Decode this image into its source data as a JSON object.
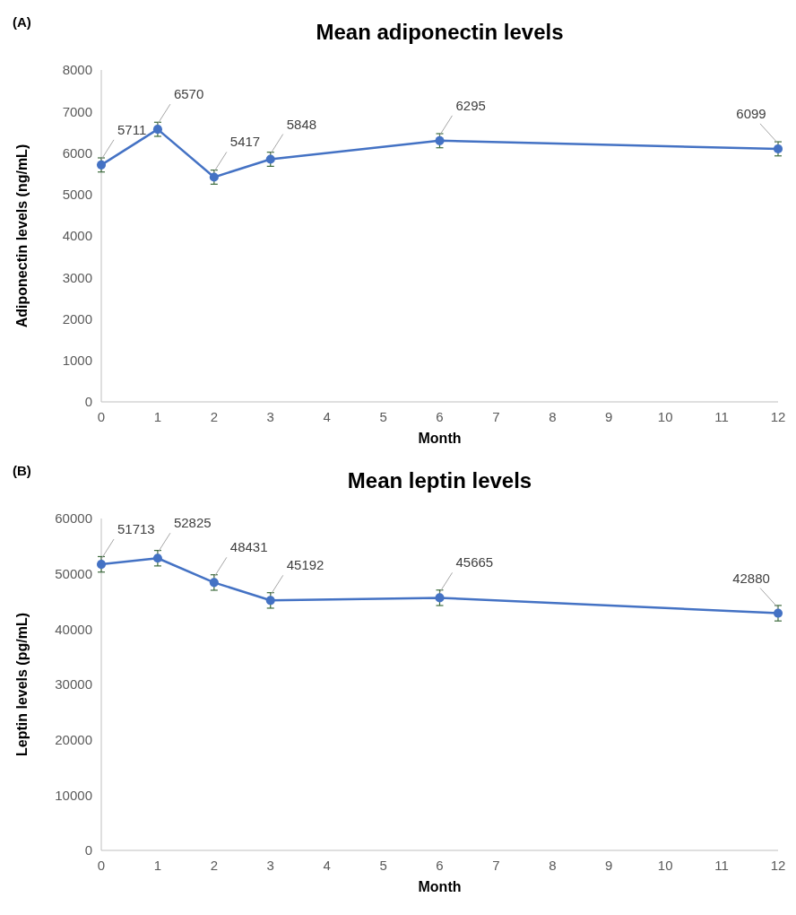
{
  "chart_data": [
    {
      "type": "line",
      "title": "Mean adiponectin levels",
      "xlabel": "Month",
      "ylabel": "Adiponectin levels (ng/mL)",
      "annotations": [
        "(A)"
      ],
      "x": [
        0,
        1,
        2,
        3,
        6,
        12
      ],
      "xlim": [
        0,
        12
      ],
      "xticks": [
        0,
        1,
        2,
        3,
        4,
        5,
        6,
        7,
        8,
        9,
        10,
        11,
        12
      ],
      "ylim": [
        0,
        8000
      ],
      "yticks": [
        0,
        1000,
        2000,
        3000,
        4000,
        5000,
        6000,
        7000,
        8000
      ],
      "grid": false,
      "marker": "circle",
      "data_labels": true,
      "series": [
        {
          "color": "#4472c4",
          "values": [
            5711,
            6570,
            5417,
            5848,
            6295,
            6099
          ],
          "errors": [
            170,
            170,
            170,
            170,
            170,
            170
          ]
        }
      ]
    },
    {
      "type": "line",
      "title": "Mean leptin levels",
      "xlabel": "Month",
      "ylabel": "Leptin levels (pg/mL)",
      "annotations": [
        "(B)"
      ],
      "x": [
        0,
        1,
        2,
        3,
        6,
        12
      ],
      "xlim": [
        0,
        12
      ],
      "xticks": [
        0,
        1,
        2,
        3,
        4,
        5,
        6,
        7,
        8,
        9,
        10,
        11,
        12
      ],
      "ylim": [
        0,
        60000
      ],
      "yticks": [
        0,
        10000,
        20000,
        30000,
        40000,
        50000,
        60000
      ],
      "grid": false,
      "marker": "circle",
      "data_labels": true,
      "series": [
        {
          "color": "#4472c4",
          "values": [
            51713,
            52825,
            48431,
            45192,
            45665,
            42880
          ],
          "errors": [
            1400,
            1400,
            1400,
            1400,
            1400,
            1400
          ]
        }
      ]
    }
  ]
}
